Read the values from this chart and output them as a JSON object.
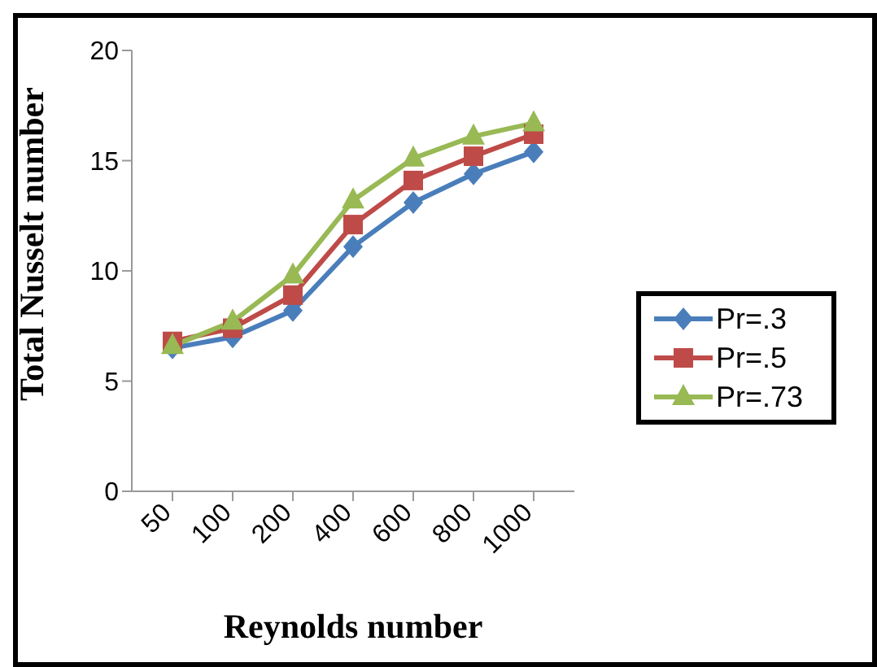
{
  "chart_data": {
    "type": "line",
    "xlabel": "Reynolds number",
    "ylabel": "Total Nusselt number",
    "categories": [
      "50",
      "100",
      "200",
      "400",
      "600",
      "800",
      "1000"
    ],
    "series": [
      {
        "name": "Pr=.3",
        "color": "#4a7ebb",
        "marker": "diamond",
        "values": [
          6.5,
          7.0,
          8.2,
          11.1,
          13.1,
          14.4,
          15.4
        ]
      },
      {
        "name": "Pr=.5",
        "color": "#be4b48",
        "marker": "square",
        "values": [
          6.8,
          7.4,
          8.9,
          12.1,
          14.1,
          15.2,
          16.2
        ]
      },
      {
        "name": "Pr=.73",
        "color": "#98b954",
        "marker": "triangle",
        "values": [
          6.6,
          7.7,
          9.8,
          13.2,
          15.1,
          16.1,
          16.7
        ]
      }
    ],
    "ylim": [
      0,
      20
    ],
    "yticks": [
      0,
      5,
      10,
      15,
      20
    ],
    "grid": false,
    "legend": "right"
  }
}
